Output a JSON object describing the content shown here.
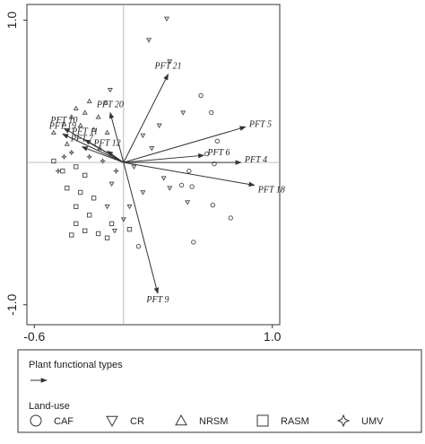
{
  "chart_data": {
    "type": "biplot",
    "xlim": [
      -0.65,
      1.05
    ],
    "ylim": [
      -1.14,
      1.11
    ],
    "xticks": [
      -0.6,
      {
        "value": 1,
        "label": "1.0"
      }
    ],
    "yticks": [
      {
        "value": -1,
        "label": "-1.0"
      },
      {
        "value": 1,
        "label": "1.0"
      }
    ],
    "vector_color": "#333333",
    "vectors_label": "Plant functional types",
    "vectors": [
      {
        "name": "PFT 21",
        "x": 0.3,
        "y": 0.62
      },
      {
        "name": "PFT 20",
        "x": -0.09,
        "y": 0.35
      },
      {
        "name": "PFT 10",
        "x": -0.4,
        "y": 0.24
      },
      {
        "name": "PFT 19",
        "x": -0.41,
        "y": 0.2
      },
      {
        "name": "PFT 7",
        "x": -0.28,
        "y": 0.11
      },
      {
        "name": "PFT 11",
        "x": -0.26,
        "y": 0.16
      },
      {
        "name": "PFT 12",
        "x": -0.11,
        "y": 0.08
      },
      {
        "name": "PFT 5",
        "x": 0.82,
        "y": 0.25
      },
      {
        "name": "PFT 6",
        "x": 0.54,
        "y": 0.05
      },
      {
        "name": "PFT 4",
        "x": 0.79,
        "y": 0.0
      },
      {
        "name": "PFT 18",
        "x": 0.88,
        "y": -0.16
      },
      {
        "name": "PFT 9",
        "x": 0.23,
        "y": -0.92
      }
    ],
    "series_label": "Land-use",
    "series": [
      {
        "name": "CAF",
        "marker": "circle",
        "color": "#555555",
        "x": [
          0.52,
          0.59,
          0.63,
          0.56,
          0.61,
          0.44,
          0.39,
          0.46,
          0.6,
          0.72,
          0.47,
          0.1
        ],
        "values": [
          0.47,
          0.35,
          0.15,
          0.06,
          -0.01,
          -0.06,
          -0.16,
          -0.17,
          -0.3,
          -0.39,
          -0.56,
          -0.59
        ]
      },
      {
        "name": "CR",
        "marker": "triangle-down",
        "color": "#555555",
        "x": [
          0.29,
          0.17,
          0.31,
          -0.09,
          0.4,
          0.24,
          0.13,
          0.19,
          0.07,
          0.27,
          -0.08,
          0.13,
          0.31,
          0.43,
          0.04,
          -0.11,
          0.0,
          -0.06
        ],
        "values": [
          1.01,
          0.86,
          0.71,
          0.51,
          0.35,
          0.26,
          0.19,
          0.1,
          -0.03,
          -0.11,
          -0.15,
          -0.21,
          -0.18,
          -0.28,
          -0.31,
          -0.31,
          -0.4,
          -0.48
        ]
      },
      {
        "name": "NRSM",
        "marker": "triangle-up",
        "color": "#555555",
        "x": [
          -0.23,
          -0.12,
          -0.32,
          -0.26,
          -0.17,
          -0.35,
          -0.4,
          -0.29,
          -0.2,
          -0.11,
          -0.38,
          -0.16,
          -0.47
        ],
        "values": [
          0.43,
          0.42,
          0.38,
          0.35,
          0.32,
          0.32,
          0.27,
          0.26,
          0.23,
          0.21,
          0.13,
          0.1,
          0.21
        ]
      },
      {
        "name": "RASM",
        "marker": "square",
        "color": "#555555",
        "x": [
          -0.47,
          -0.41,
          -0.32,
          -0.26,
          -0.38,
          -0.29,
          -0.2,
          -0.32,
          -0.23,
          -0.32,
          -0.26,
          -0.17,
          -0.35,
          -0.11,
          0.04,
          -0.08
        ],
        "values": [
          0.01,
          -0.06,
          -0.03,
          -0.09,
          -0.18,
          -0.21,
          -0.25,
          -0.31,
          -0.37,
          -0.43,
          -0.48,
          -0.5,
          -0.51,
          -0.53,
          -0.47,
          -0.43
        ]
      },
      {
        "name": "UMV",
        "marker": "star",
        "color": "#555555",
        "x": [
          -0.44,
          -0.4,
          -0.35,
          -0.14,
          -0.23,
          -0.05
        ],
        "values": [
          -0.06,
          0.04,
          0.07,
          0.01,
          0.04,
          -0.06
        ]
      }
    ]
  }
}
